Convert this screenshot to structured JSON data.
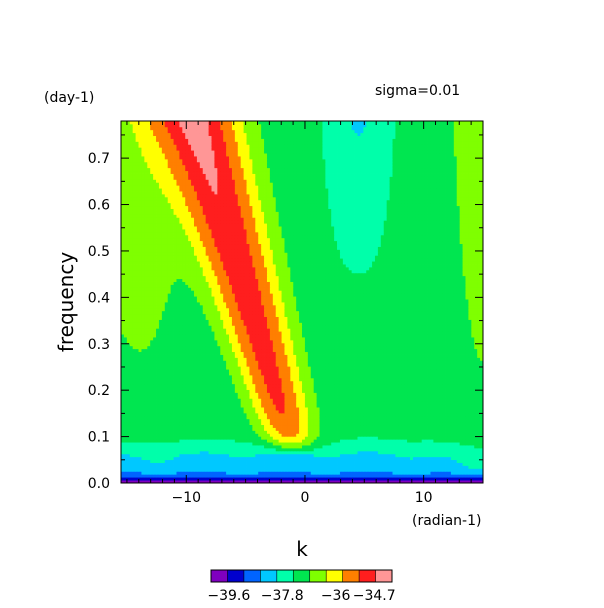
{
  "chart_data": {
    "type": "heatmap",
    "title": "",
    "xlabel": "k",
    "ylabel": "frequency",
    "x_unit": "(radian-1)",
    "y_unit": "(day-1)",
    "annotation": "sigma=0.01",
    "xlim": [
      -15.5,
      15
    ],
    "ylim": [
      0,
      0.78
    ],
    "x_ticks": [
      -10,
      0,
      10
    ],
    "x_tick_labels": [
      "−10",
      "0",
      "10"
    ],
    "y_ticks": [
      0,
      0.1,
      0.2,
      0.3,
      0.4,
      0.5,
      0.6,
      0.7
    ],
    "y_tick_labels": [
      "0.0",
      "0.1",
      "0.2",
      "0.3",
      "0.4",
      "0.5",
      "0.6",
      "0.7"
    ],
    "contour_levels": [
      -40.2,
      -39.6,
      -39.0,
      -38.4,
      -37.8,
      -37.2,
      -36.6,
      -36.0,
      -35.4,
      -34.7,
      -34.1
    ],
    "level_colors": [
      "#7f00bf",
      "#0000cd",
      "#0064ff",
      "#00c8ff",
      "#00ffaa",
      "#00e650",
      "#7fff00",
      "#ffff00",
      "#ff7f00",
      "#ff1e1e",
      "#ff9696"
    ],
    "colorbar": {
      "labels": [
        "−39.6",
        "−37.8",
        "−36",
        "−34.7"
      ],
      "label_levels": [
        -39.6,
        -37.8,
        -36.0,
        -34.7
      ]
    },
    "ridge": {
      "description_points_k": [
        -9.0,
        -7.0,
        -5.0,
        -3.0,
        -1.0
      ],
      "description_points_freq": [
        0.78,
        0.6,
        0.4,
        0.2,
        0.07
      ]
    }
  }
}
